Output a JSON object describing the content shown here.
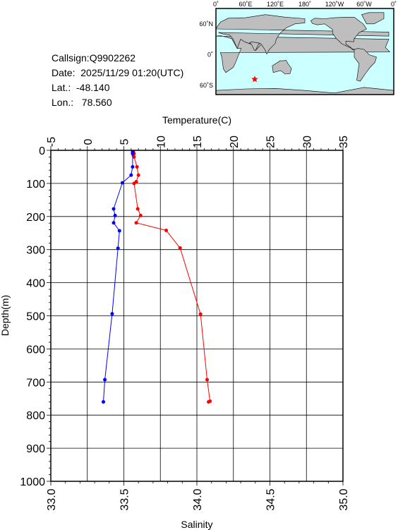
{
  "info": {
    "callsign": "Callsign:Q9902262",
    "date": "Date:  2025/11/29 01:20(UTC)",
    "lat": "Lat.:  -48.140",
    "lon": "Lon.:   78.560"
  },
  "map": {
    "lon_ticks": [
      "0˚",
      "60˚E",
      "120˚E",
      "180˚",
      "120˚W",
      "60˚W",
      "0˚"
    ],
    "lat_ticks": [
      "60˚N",
      "0˚",
      "60˚S"
    ],
    "ocean_color": "#ccffff",
    "land_color": "#bebebe",
    "marker": {
      "lon": 78.56,
      "lat": -48.14,
      "symbol": "star",
      "color": "#ff0000"
    }
  },
  "chart_data": {
    "type": "line",
    "title": "",
    "temperature_axis": {
      "label": "Temperature(C)",
      "range": [
        -5,
        35
      ],
      "ticks": [
        "-5",
        "0",
        "5",
        "10",
        "15",
        "20",
        "25",
        "30",
        "35"
      ]
    },
    "salinity_axis": {
      "label": "Salinity",
      "range": [
        33.0,
        35.0
      ],
      "ticks": [
        "33.0",
        "33.5",
        "34.0",
        "34.5",
        "35.0"
      ]
    },
    "depth_axis": {
      "label": "Depth(m)",
      "range": [
        0,
        1000
      ],
      "inverted": true,
      "ticks": [
        "0",
        "100",
        "200",
        "300",
        "400",
        "500",
        "600",
        "700",
        "800",
        "900",
        "1000"
      ]
    },
    "grid": true,
    "series": [
      {
        "color": "#ff0000",
        "quantity": "temperature",
        "points": [
          {
            "depth": 5,
            "value": 6.3
          },
          {
            "depth": 10,
            "value": 6.4
          },
          {
            "depth": 15,
            "value": 6.3
          },
          {
            "depth": 20,
            "value": 6.4
          },
          {
            "depth": 50,
            "value": 6.8
          },
          {
            "depth": 75,
            "value": 7.0
          },
          {
            "depth": 95,
            "value": 6.7
          },
          {
            "depth": 100,
            "value": 6.4
          },
          {
            "depth": 177,
            "value": 6.9
          },
          {
            "depth": 197,
            "value": 7.3
          },
          {
            "depth": 219,
            "value": 6.7
          },
          {
            "depth": 242,
            "value": 10.8
          },
          {
            "depth": 295,
            "value": 12.7
          },
          {
            "depth": 495,
            "value": 15.5
          },
          {
            "depth": 693,
            "value": 16.4
          },
          {
            "depth": 758,
            "value": 16.8
          },
          {
            "depth": 760,
            "value": 16.6
          }
        ]
      },
      {
        "color": "#0000ff",
        "quantity": "salinity",
        "points": [
          {
            "depth": 5,
            "value": 33.56
          },
          {
            "depth": 10,
            "value": 33.56
          },
          {
            "depth": 50,
            "value": 33.56
          },
          {
            "depth": 75,
            "value": 33.55
          },
          {
            "depth": 98,
            "value": 33.49
          },
          {
            "depth": 177,
            "value": 33.43
          },
          {
            "depth": 197,
            "value": 33.44
          },
          {
            "depth": 219,
            "value": 33.43
          },
          {
            "depth": 243,
            "value": 33.47
          },
          {
            "depth": 296,
            "value": 33.46
          },
          {
            "depth": 494,
            "value": 33.42
          },
          {
            "depth": 693,
            "value": 33.37
          },
          {
            "depth": 760,
            "value": 33.36
          }
        ]
      }
    ]
  }
}
